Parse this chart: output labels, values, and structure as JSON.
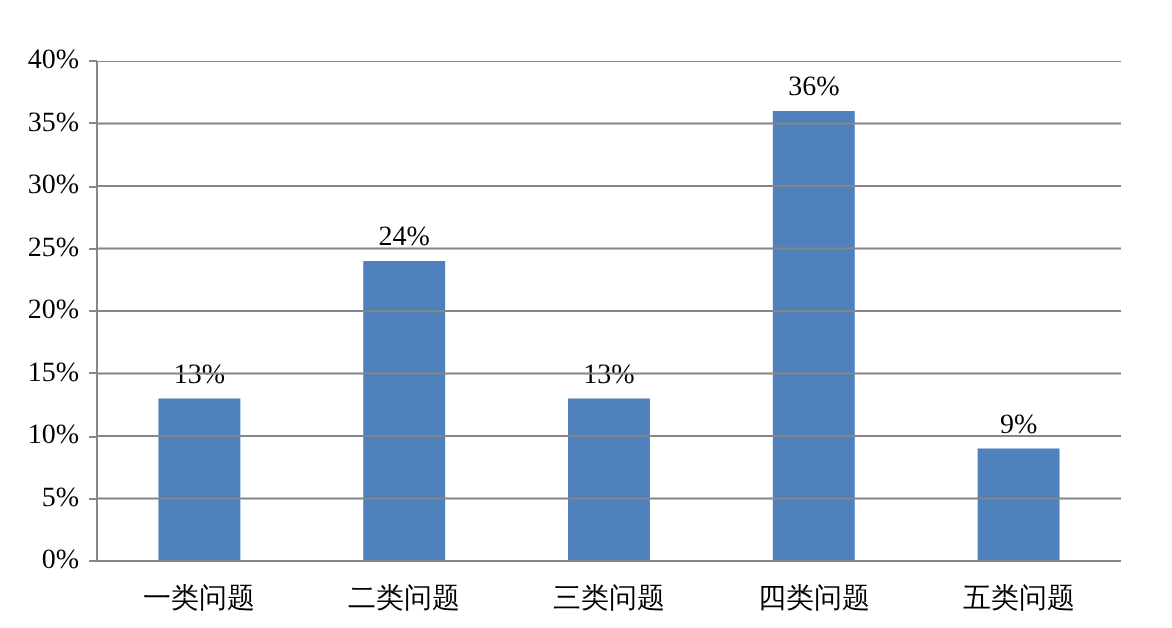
{
  "chart_data": {
    "type": "bar",
    "categories": [
      "一类问题",
      "二类问题",
      "三类问题",
      "四类问题",
      "五类问题"
    ],
    "values": [
      13,
      24,
      13,
      36,
      9
    ],
    "value_labels": [
      "13%",
      "24%",
      "13%",
      "36%",
      "9%"
    ],
    "color": "#4f81bd",
    "ylim": [
      0,
      40
    ],
    "yticks": [
      {
        "value": 0,
        "label": "0%"
      },
      {
        "value": 5,
        "label": "5%"
      },
      {
        "value": 10,
        "label": "10%"
      },
      {
        "value": 15,
        "label": "15%"
      },
      {
        "value": 20,
        "label": "20%"
      },
      {
        "value": 25,
        "label": "25%"
      },
      {
        "value": 30,
        "label": "30%"
      },
      {
        "value": 35,
        "label": "35%"
      },
      {
        "value": 40,
        "label": "40%"
      }
    ],
    "grid": "y"
  }
}
